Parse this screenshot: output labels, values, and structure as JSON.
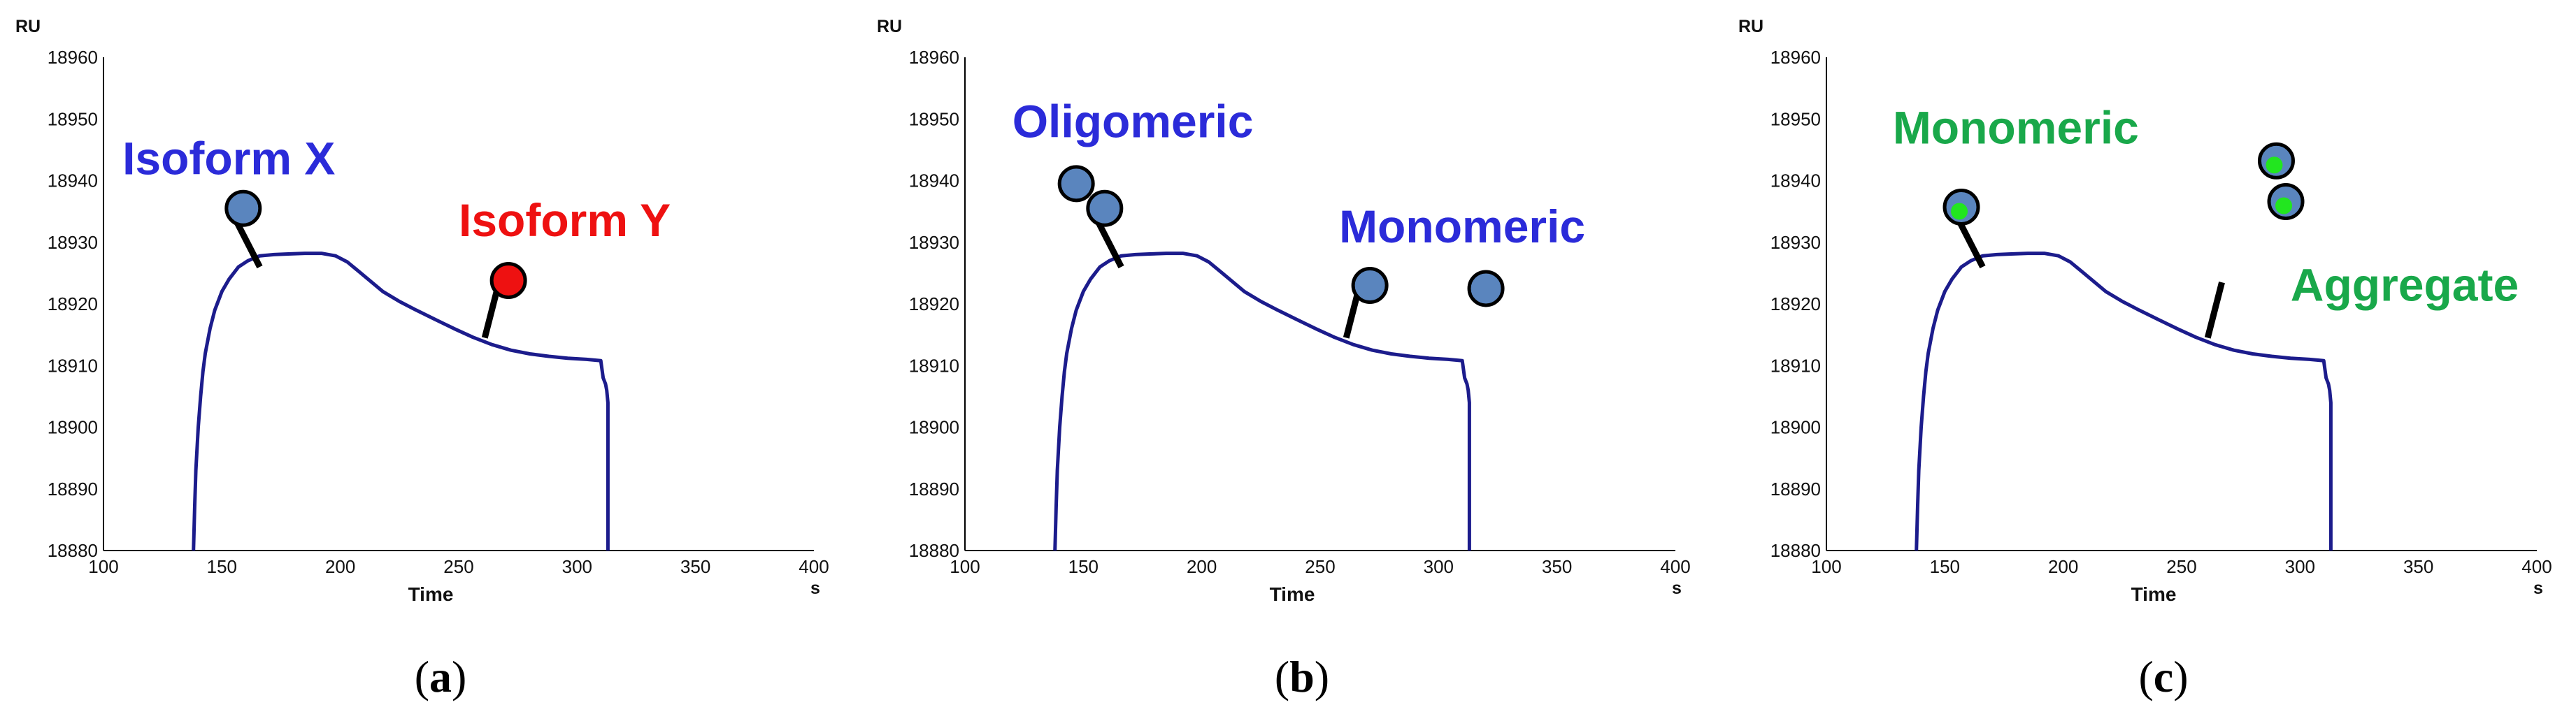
{
  "colors": {
    "curve": "#1c1c8c",
    "axis": "#000000",
    "bead_blue": "#5a85be",
    "bead_red": "#ee1111",
    "label_blue": "#2b2bd9",
    "label_red": "#ee1111",
    "label_green": "#19a84a",
    "dot_green": "#22e61f",
    "stick": "#000000"
  },
  "chart_data": [
    {
      "type": "line",
      "panel": "a",
      "caption": {
        "open": "(",
        "letter": "a",
        "close": ")"
      },
      "ylabel": "RU",
      "xlabel": "Time",
      "xunit": "s",
      "xlim": [
        100,
        400
      ],
      "ylim": [
        18880,
        18960
      ],
      "xticks": [
        "100",
        "150",
        "200",
        "250",
        "300",
        "350",
        "400"
      ],
      "yticks": [
        "18960",
        "18950",
        "18940",
        "18930",
        "18920",
        "18910",
        "18900",
        "18890",
        "18880"
      ],
      "series": [
        {
          "x": [
            138,
            138.5,
            139,
            140,
            141,
            142,
            143,
            145,
            147,
            150,
            153,
            157,
            161,
            166,
            172,
            178,
            185,
            192,
            198,
            203,
            208,
            213,
            218,
            225,
            232,
            240,
            248,
            256,
            264,
            272,
            280,
            288,
            296,
            304,
            310,
            311,
            312,
            312.5,
            313,
            313
          ],
          "y": [
            18880,
            18887,
            18893,
            18900,
            18905,
            18909,
            18912,
            18916,
            18919,
            18922,
            18924,
            18926,
            18927,
            18927.8,
            18928,
            18928.1,
            18928.2,
            18928.2,
            18927.8,
            18926.8,
            18925.2,
            18923.6,
            18922,
            18920.4,
            18919,
            18917.5,
            18916,
            18914.6,
            18913.4,
            18912.5,
            18911.9,
            18911.5,
            18911.2,
            18911,
            18910.8,
            18908,
            18907,
            18906,
            18904,
            18880
          ]
        }
      ],
      "annotations": [
        {
          "text": "Isoform X",
          "color_key": "label_blue",
          "x": 108,
          "y": 18941
        },
        {
          "text": "Isoform Y",
          "color_key": "label_red",
          "x": 250,
          "y": 18931
        }
      ],
      "sticks": [
        {
          "x": 166,
          "y": 18926,
          "dx": -12,
          "dy": 9
        },
        {
          "x": 261,
          "y": 18914.5,
          "dx": 6,
          "dy": 9
        }
      ],
      "beads": [
        {
          "x": 159,
          "y": 18935.5,
          "fill_key": "bead_blue"
        },
        {
          "x": 271,
          "y": 18923.8,
          "fill_key": "bead_red"
        }
      ]
    },
    {
      "type": "line",
      "panel": "b",
      "caption": {
        "open": "(",
        "letter": "b",
        "close": ")"
      },
      "ylabel": "RU",
      "xlabel": "Time",
      "xunit": "s",
      "xlim": [
        100,
        400
      ],
      "ylim": [
        18880,
        18960
      ],
      "xticks": [
        "100",
        "150",
        "200",
        "250",
        "300",
        "350",
        "400"
      ],
      "yticks": [
        "18960",
        "18950",
        "18940",
        "18930",
        "18920",
        "18910",
        "18900",
        "18890",
        "18880"
      ],
      "series": [
        {
          "x": [
            138,
            138.5,
            139,
            140,
            141,
            142,
            143,
            145,
            147,
            150,
            153,
            157,
            161,
            166,
            172,
            178,
            185,
            192,
            198,
            203,
            208,
            213,
            218,
            225,
            232,
            240,
            248,
            256,
            264,
            272,
            280,
            288,
            296,
            304,
            310,
            311,
            312,
            312.5,
            313,
            313
          ],
          "y": [
            18880,
            18887,
            18893,
            18900,
            18905,
            18909,
            18912,
            18916,
            18919,
            18922,
            18924,
            18926,
            18927,
            18927.8,
            18928,
            18928.1,
            18928.2,
            18928.2,
            18927.8,
            18926.8,
            18925.2,
            18923.6,
            18922,
            18920.4,
            18919,
            18917.5,
            18916,
            18914.6,
            18913.4,
            18912.5,
            18911.9,
            18911.5,
            18911.2,
            18911,
            18910.8,
            18908,
            18907,
            18906,
            18904,
            18880
          ]
        }
      ],
      "annotations": [
        {
          "text": "Oligomeric",
          "color_key": "label_blue",
          "x": 120,
          "y": 18947
        },
        {
          "text": "Monomeric",
          "color_key": "label_blue",
          "x": 258,
          "y": 18930
        }
      ],
      "sticks": [
        {
          "x": 166,
          "y": 18926,
          "dx": -12,
          "dy": 9
        },
        {
          "x": 261,
          "y": 18914.5,
          "dx": 6,
          "dy": 9
        }
      ],
      "beads": [
        {
          "x": 147,
          "y": 18939.5,
          "fill_key": "bead_blue"
        },
        {
          "x": 159,
          "y": 18935.5,
          "fill_key": "bead_blue"
        },
        {
          "x": 271,
          "y": 18923,
          "fill_key": "bead_blue"
        },
        {
          "x": 320,
          "y": 18922.5,
          "fill_key": "bead_blue"
        }
      ]
    },
    {
      "type": "line",
      "panel": "c",
      "caption": {
        "open": "(",
        "letter": "c",
        "close": ")"
      },
      "ylabel": "RU",
      "xlabel": "Time",
      "xunit": "s",
      "xlim": [
        100,
        400
      ],
      "ylim": [
        18880,
        18960
      ],
      "xticks": [
        "100",
        "150",
        "200",
        "250",
        "300",
        "350",
        "400"
      ],
      "yticks": [
        "18960",
        "18950",
        "18940",
        "18930",
        "18920",
        "18910",
        "18900",
        "18890",
        "18880"
      ],
      "series": [
        {
          "x": [
            138,
            138.5,
            139,
            140,
            141,
            142,
            143,
            145,
            147,
            150,
            153,
            157,
            161,
            166,
            172,
            178,
            185,
            192,
            198,
            203,
            208,
            213,
            218,
            225,
            232,
            240,
            248,
            256,
            264,
            272,
            280,
            288,
            296,
            304,
            310,
            311,
            312,
            312.5,
            313,
            313
          ],
          "y": [
            18880,
            18887,
            18893,
            18900,
            18905,
            18909,
            18912,
            18916,
            18919,
            18922,
            18924,
            18926,
            18927,
            18927.8,
            18928,
            18928.1,
            18928.2,
            18928.2,
            18927.8,
            18926.8,
            18925.2,
            18923.6,
            18922,
            18920.4,
            18919,
            18917.5,
            18916,
            18914.6,
            18913.4,
            18912.5,
            18911.9,
            18911.5,
            18911.2,
            18911,
            18910.8,
            18908,
            18907,
            18906,
            18904,
            18880
          ]
        }
      ],
      "annotations": [
        {
          "text": "Monomeric",
          "color_key": "label_green",
          "x": 128,
          "y": 18946
        },
        {
          "text": "Aggregate",
          "color_key": "label_green",
          "x": 296,
          "y": 18920.5
        }
      ],
      "sticks": [
        {
          "x": 166,
          "y": 18926,
          "dx": -12,
          "dy": 9
        },
        {
          "x": 261,
          "y": 18914.5,
          "dx": 6,
          "dy": 9
        }
      ],
      "beads": [
        {
          "x": 157,
          "y": 18935.7,
          "fill_key": "bead_blue",
          "dot": true
        },
        {
          "x": 290,
          "y": 18943.2,
          "fill_key": "bead_blue",
          "dot": true
        },
        {
          "x": 294,
          "y": 18936.6,
          "fill_key": "bead_blue",
          "dot": true
        }
      ]
    }
  ]
}
